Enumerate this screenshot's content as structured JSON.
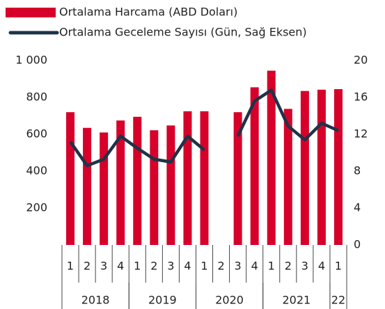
{
  "chart_data": {
    "type": "bar+line",
    "categories": [
      "1",
      "2",
      "3",
      "4",
      "1",
      "2",
      "3",
      "4",
      "1",
      "2",
      "3",
      "4",
      "1",
      "2",
      "3",
      "4",
      "1"
    ],
    "groups": [
      {
        "label": "2018",
        "count": 4
      },
      {
        "label": "2019",
        "count": 4
      },
      {
        "label": "2020",
        "count": 4
      },
      {
        "label": "2021",
        "count": 4
      },
      {
        "label": "22",
        "count": 1
      }
    ],
    "series": [
      {
        "name": "Ortalama Harcama (ABD Doları)",
        "type": "bar",
        "color": "#d7002a",
        "values": [
          720,
          635,
          610,
          675,
          695,
          622,
          648,
          725,
          725,
          null,
          720,
          855,
          945,
          738,
          835,
          842,
          845
        ]
      },
      {
        "name": "Ortalama Geceleme Sayısı (Gün, Sağ Eksen)",
        "type": "line",
        "axis": "y2",
        "color": "#1e3348",
        "values": [
          11.2,
          8.6,
          9.3,
          11.8,
          10.5,
          9.3,
          9.0,
          11.8,
          10.3,
          null,
          11.8,
          15.6,
          16.8,
          12.9,
          11.4,
          13.2,
          12.4
        ]
      }
    ],
    "ylim": [
      0,
      1000
    ],
    "yticks": [
      200,
      400,
      600,
      800,
      {
        "value": 1000,
        "label": "1 000"
      }
    ],
    "y2lim": [
      0,
      20
    ],
    "y2ticks": [
      0,
      4,
      8,
      12,
      16,
      20
    ],
    "legend": "top"
  }
}
